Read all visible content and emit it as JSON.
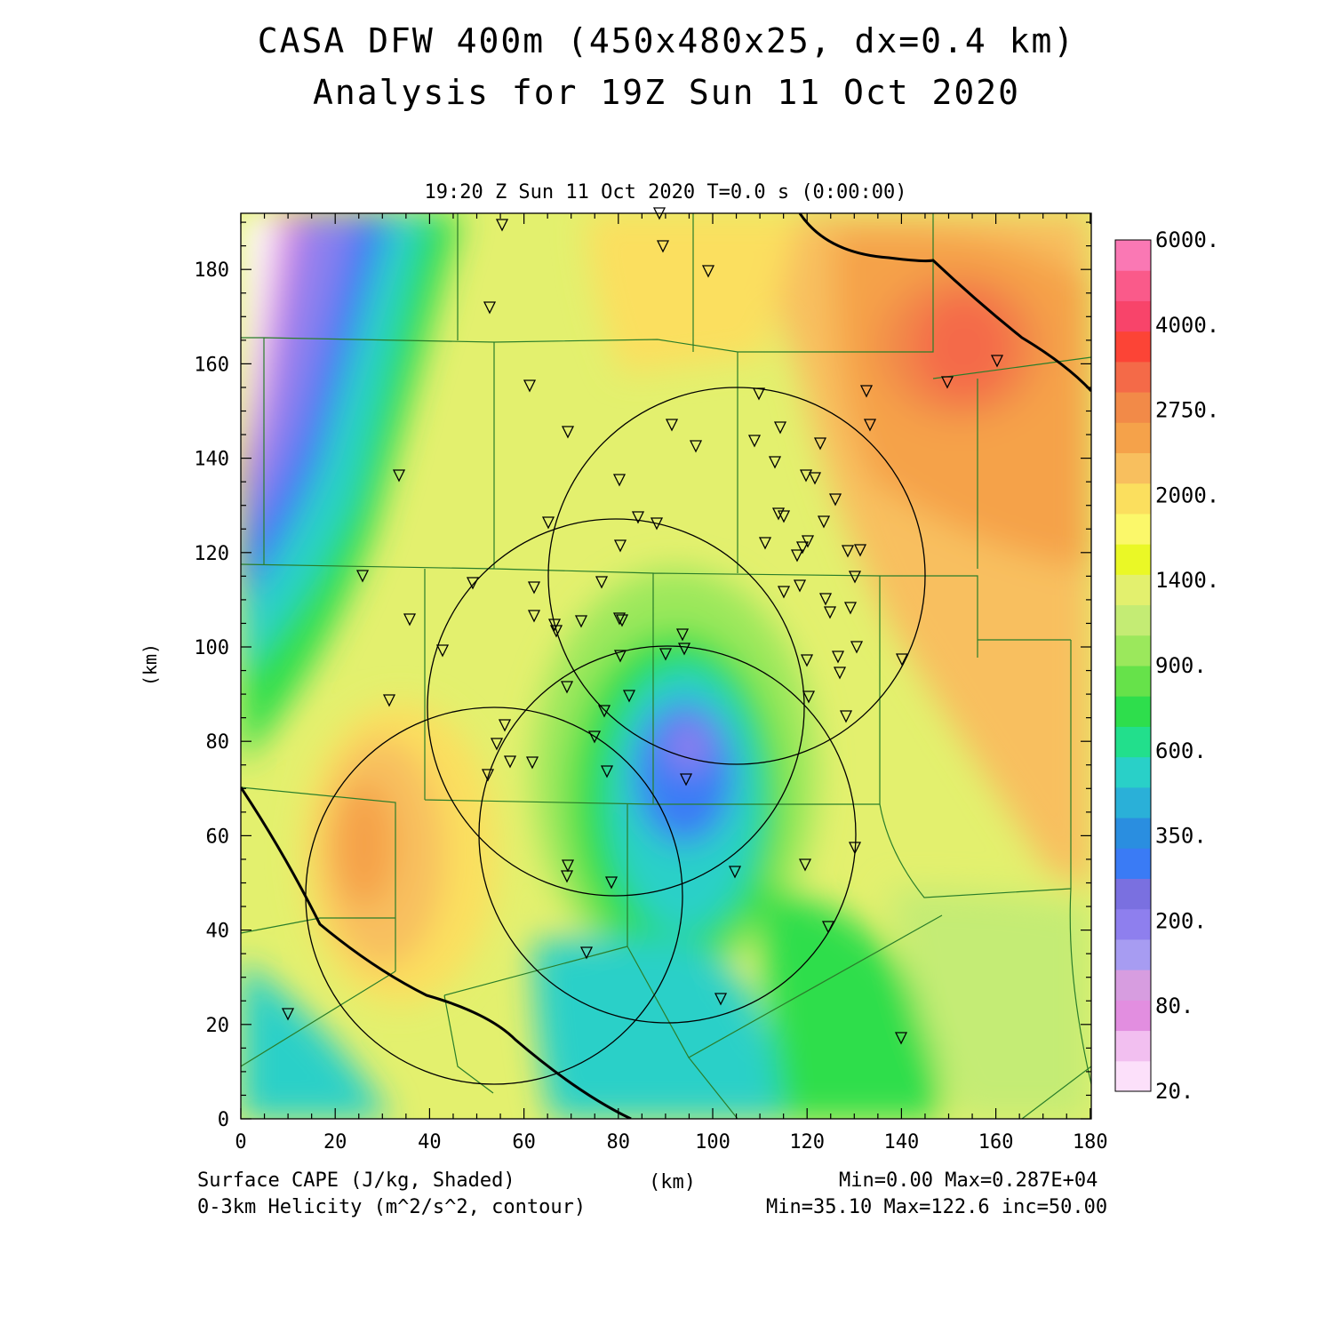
{
  "title": "CASA DFW 400m (450x480x25, dx=0.4 km)",
  "subtitle": "Analysis for 19Z Sun 11 Oct 2020",
  "plot_header": "19:20 Z Sun 11 Oct 2020   T=0.0 s (0:00:00)",
  "footer": {
    "field1": "Surface CAPE (J/kg, Shaded)",
    "field2": "0-3km Helicity (m^2/s^2, contour)",
    "xunit": "(km)",
    "stats1": "Min=0.00 Max=0.287E+04",
    "stats2": "Min=35.10 Max=122.6 inc=50.00"
  },
  "axes": {
    "xlabel": "(km)",
    "ylabel": "(km)",
    "xticks": [
      "0",
      "20",
      "40",
      "60",
      "80",
      "100",
      "120",
      "140",
      "160",
      "180"
    ],
    "yticks": [
      "0",
      "20",
      "40",
      "60",
      "80",
      "100",
      "120",
      "140",
      "160",
      "180"
    ]
  },
  "colorbar": {
    "labels": [
      "20.",
      "80.",
      "200.",
      "350.",
      "600.",
      "900.",
      "1400.",
      "2000.",
      "2750.",
      "4000.",
      "6000."
    ],
    "colors": [
      "#fce0fa",
      "#f2bff0",
      "#e28ee0",
      "#d79de0",
      "#a79cf2",
      "#8e7fee",
      "#7a70e0",
      "#3a7bf5",
      "#2a8ee0",
      "#2ab0d8",
      "#29d0c8",
      "#22df8c",
      "#2ede4c",
      "#66e24a",
      "#9be85c",
      "#c4ec74",
      "#e3f06e",
      "#eaf826",
      "#fbf86a",
      "#fbdf5e",
      "#f8bf5e",
      "#f5a24a",
      "#f28a48",
      "#f46a48",
      "#fc4436",
      "#f8446a",
      "#fa5a8a",
      "#fa78b4"
    ]
  },
  "map": {
    "helicity_contour_level": 50,
    "stations": 74
  }
}
